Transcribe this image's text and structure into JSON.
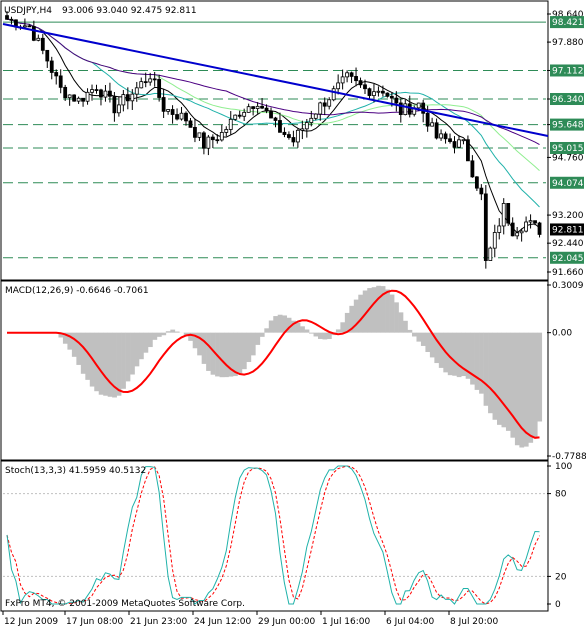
{
  "header": {
    "symbol_text": "USDJPY,H4",
    "ohlc_text": "93.006 93.040 92.475 92.811"
  },
  "main": {
    "price_ticks": [
      "98.640",
      "97.880",
      "97.112",
      "96.340",
      "95.648",
      "94.760",
      "93.200",
      "92.440",
      "91.660"
    ],
    "levels": [
      {
        "label": "98.421",
        "color": "#2e8b57"
      },
      {
        "label": "97.112",
        "color": "#2e8b57"
      },
      {
        "label": "96.340",
        "color": "#2e8b57"
      },
      {
        "label": "95.648",
        "color": "#2e8b57"
      },
      {
        "label": "95.015",
        "color": "#2e8b57"
      },
      {
        "label": "94.074",
        "color": "#2e8b57"
      },
      {
        "label": "92.045",
        "color": "#2e8b57"
      }
    ],
    "current_price": "92.811",
    "candle_color": "#000000",
    "trendline_color": "#0000cd",
    "ma_colors": [
      "#000000",
      "#20b2aa",
      "#90ee90",
      "#4b0082"
    ]
  },
  "macd": {
    "label": "MACD(12,26,9) -0.6646 -0.7061",
    "ticks": [
      "0.3009",
      "0.00",
      "-0.7788"
    ],
    "hist_color": "#c0c0c0",
    "signal_color": "#ff0000"
  },
  "stoch": {
    "label": "Stoch(13,3,3) 41.5959 40.5132",
    "ticks": [
      "100",
      "80",
      "20",
      "0"
    ],
    "main_color": "#20b2aa",
    "signal_color": "#ff0000"
  },
  "time_axis": [
    "12 Jun 2009",
    "17 Jun 08:00",
    "21 Jun 23:00",
    "24 Jun 12:00",
    "29 Jun 00:00",
    "1 Jul 16:00",
    "6 Jul 04:00",
    "8 Jul 20:00"
  ],
  "copyright": "FxPro MT4, © 2001-2009 MetaQuotes Software Corp."
}
